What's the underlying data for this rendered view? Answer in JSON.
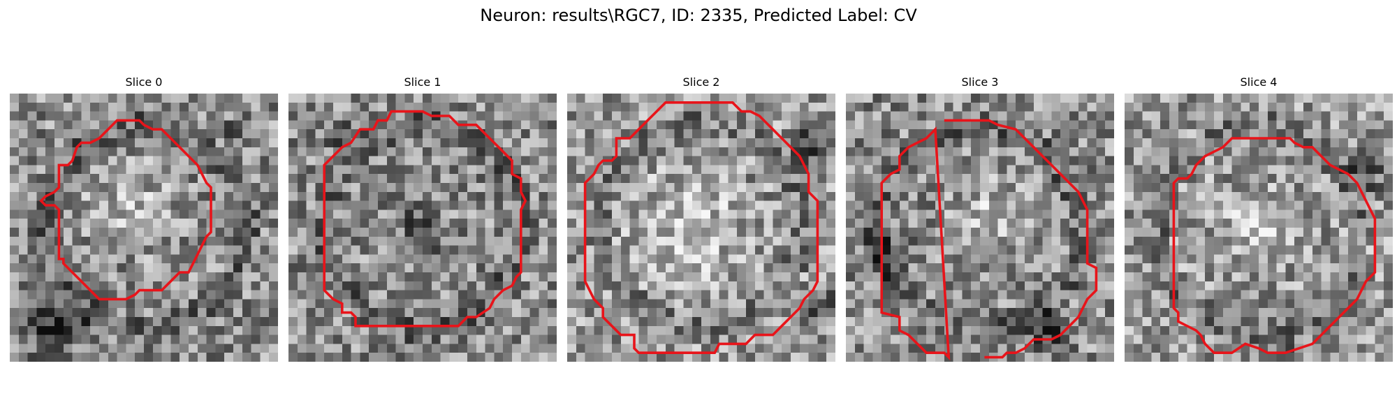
{
  "figure": {
    "title": "Neuron: results\\RGC7, ID: 2335, Predicted Label: CV",
    "contour_color": "#e8141a",
    "panels": [
      {
        "title": "Slice 0",
        "bg": 0.55,
        "dark_blobs": [
          [
            0.85,
            0.15,
            0.06
          ],
          [
            0.15,
            0.85,
            0.18
          ],
          [
            0.05,
            0.05,
            0.0
          ]
        ],
        "light_center": [
          0.45,
          0.42,
          0.25
        ]
      },
      {
        "title": "Slice 1",
        "bg": 0.55,
        "dark_blobs": [
          [
            0.5,
            0.5,
            0.12
          ],
          [
            0.2,
            0.15,
            0.08
          ]
        ],
        "light_center": [
          0.5,
          0.5,
          0.0
        ]
      },
      {
        "title": "Slice 2",
        "bg": 0.6,
        "dark_blobs": [
          [
            0.9,
            0.2,
            0.12
          ],
          [
            0.95,
            0.8,
            0.1
          ]
        ],
        "light_center": [
          0.45,
          0.5,
          0.3
        ]
      },
      {
        "title": "Slice 3",
        "bg": 0.55,
        "dark_blobs": [
          [
            0.15,
            0.6,
            0.12
          ],
          [
            0.75,
            0.9,
            0.12
          ]
        ],
        "light_center": [
          0.55,
          0.45,
          0.25
        ]
      },
      {
        "title": "Slice 4",
        "bg": 0.6,
        "dark_blobs": [
          [
            0.6,
            0.95,
            0.1
          ],
          [
            0.9,
            0.3,
            0.1
          ]
        ],
        "light_center": [
          0.5,
          0.5,
          0.22
        ]
      }
    ]
  }
}
